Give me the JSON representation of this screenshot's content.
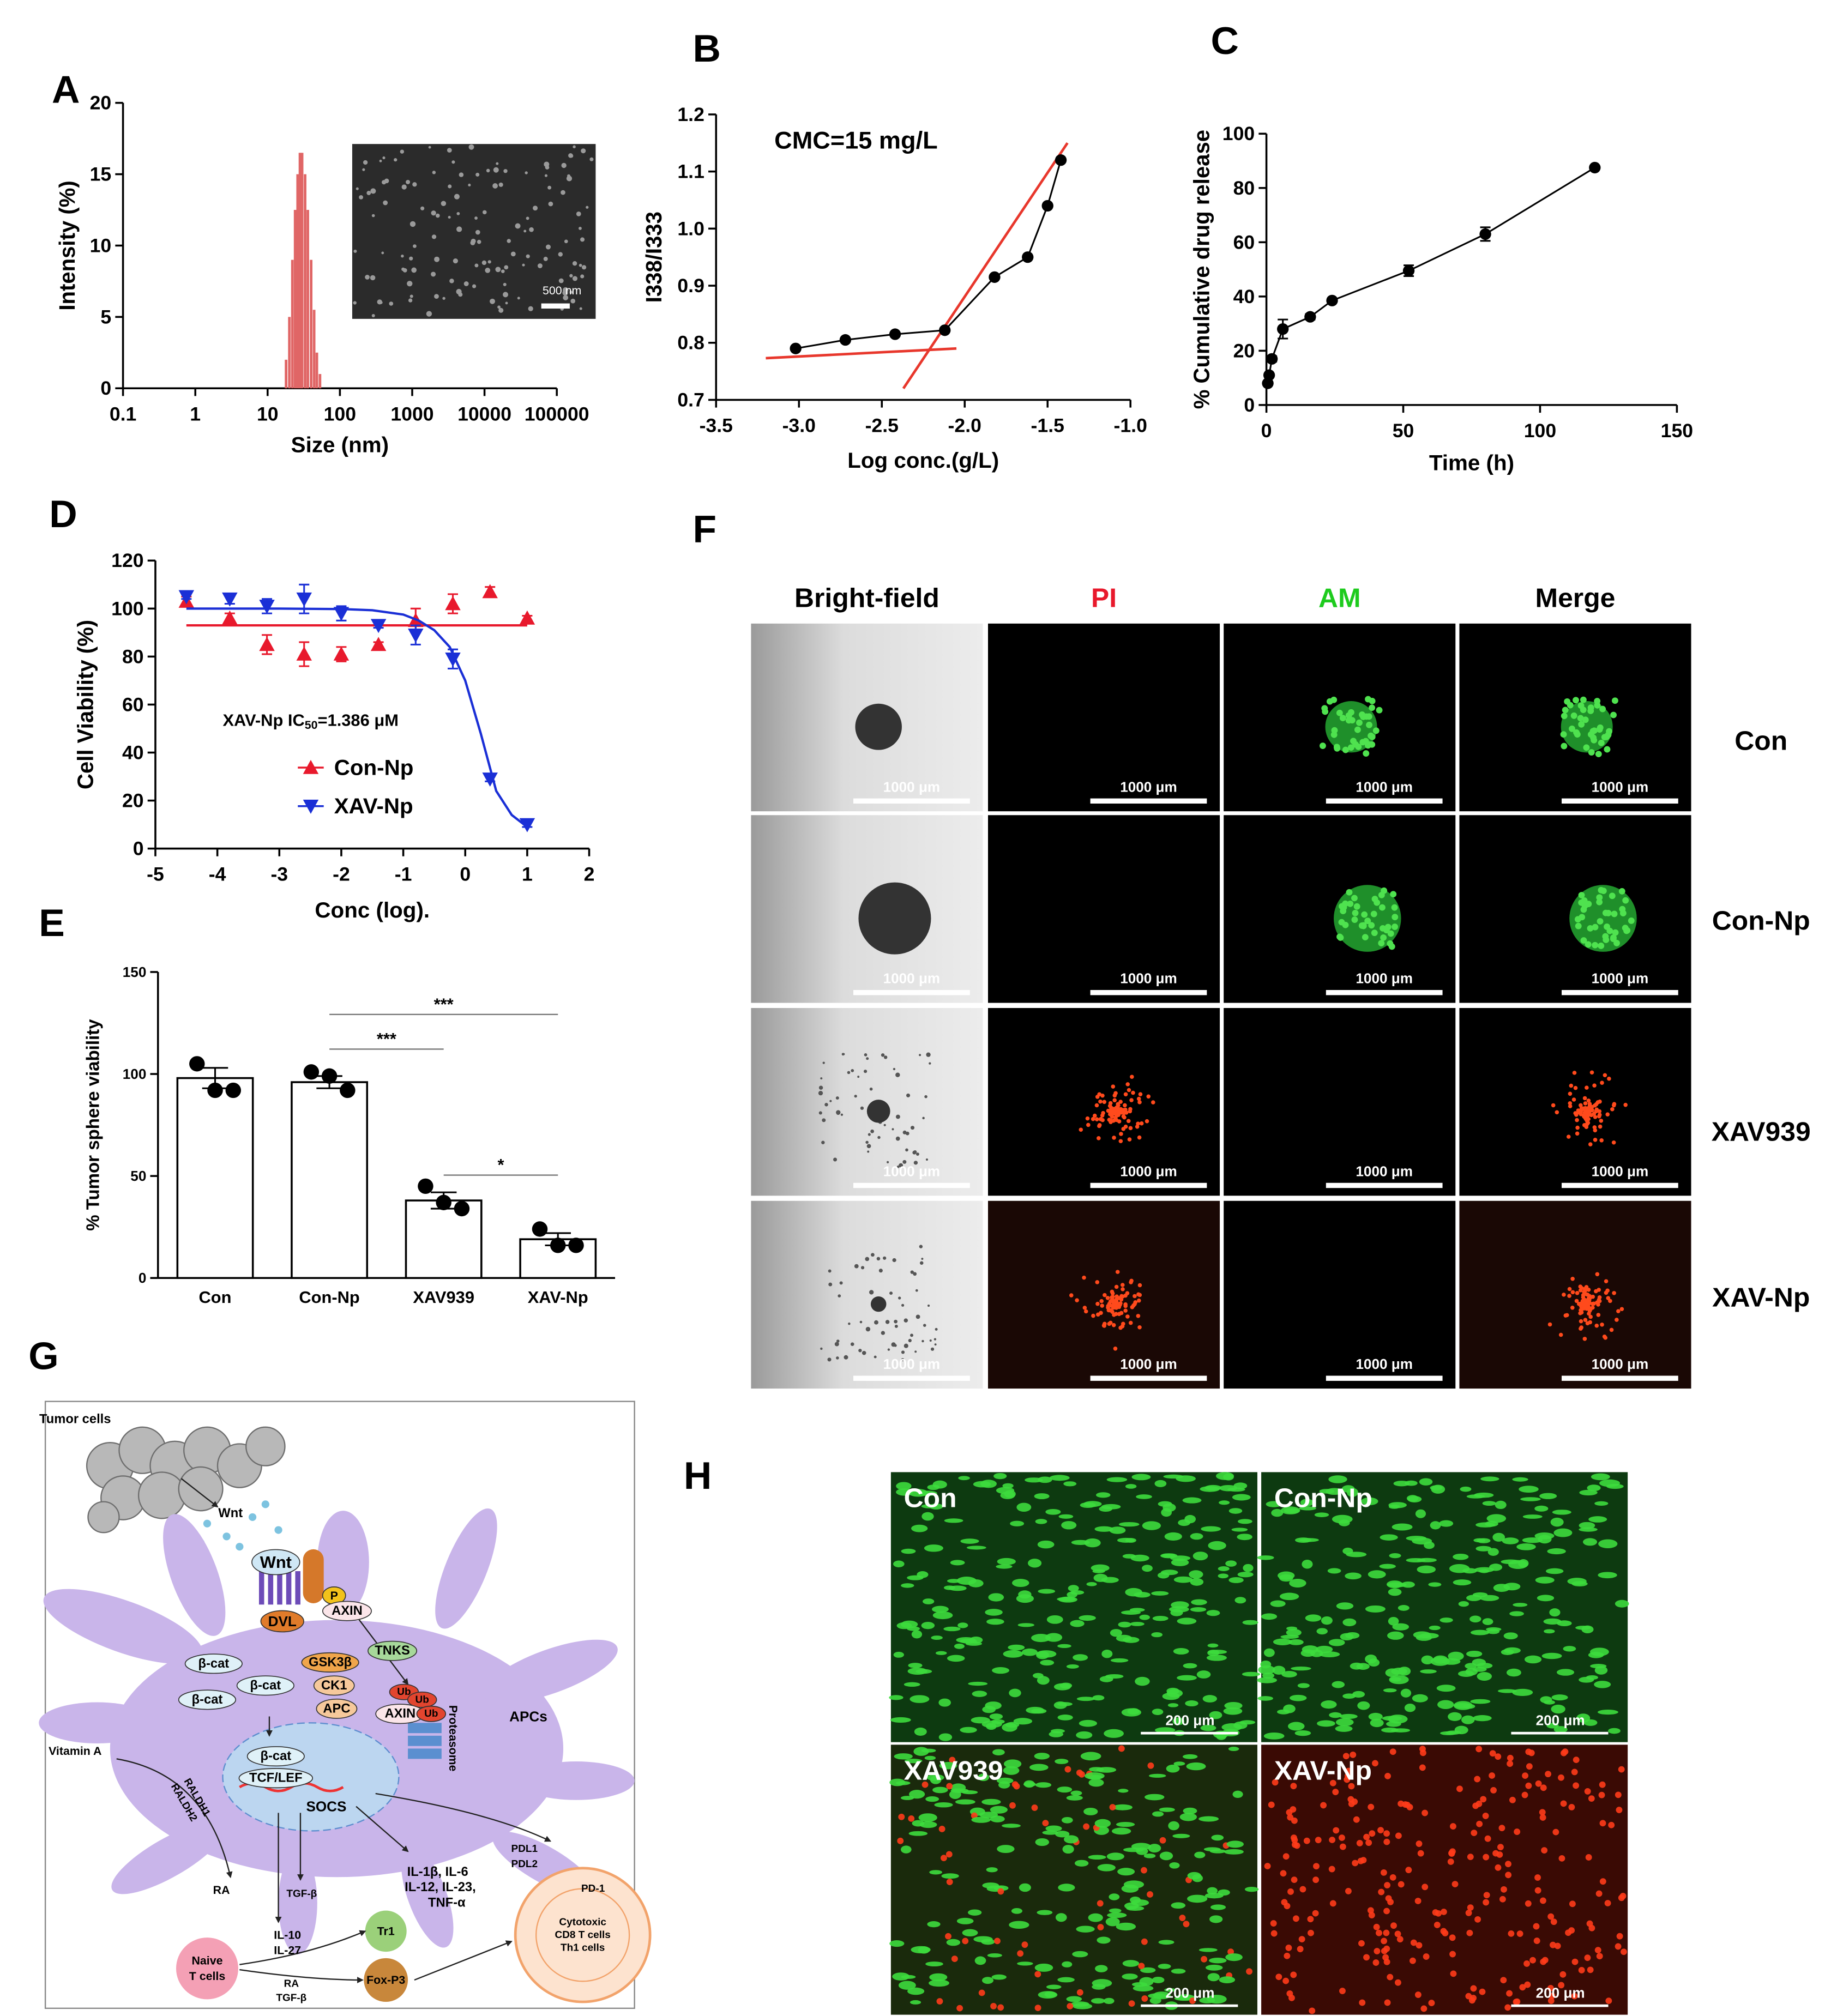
{
  "chart_data": [
    {
      "panel": "A",
      "type": "bar",
      "x": [
        18,
        20,
        22,
        24,
        26,
        28,
        30,
        33,
        36,
        40,
        44,
        48,
        53
      ],
      "values": [
        2,
        5,
        9,
        12.5,
        15,
        16.5,
        16.5,
        15,
        12.5,
        9,
        5.5,
        2.5,
        1
      ],
      "color": "#e06666",
      "xlog": true,
      "xlim": [
        0.1,
        100000
      ],
      "xticks": [
        0.1,
        1,
        10,
        100,
        1000,
        10000,
        100000
      ],
      "ylim": [
        0,
        20
      ],
      "yticks": [
        0,
        5,
        10,
        15,
        20
      ],
      "x_label": "Size (nm)",
      "y_label": "Intensity (%)",
      "inset_scale_label": "500 nm"
    },
    {
      "panel": "B",
      "type": "line",
      "annotation": "CMC=15 mg/L",
      "x": [
        -3.02,
        -2.72,
        -2.42,
        -2.12,
        -1.82,
        -1.62,
        -1.5,
        -1.42
      ],
      "values": [
        0.79,
        0.805,
        0.815,
        0.822,
        0.915,
        0.95,
        1.04,
        1.12
      ],
      "color": "#000000",
      "fit_lines": [
        {
          "x": [
            -3.2,
            -2.05
          ],
          "values": [
            0.773,
            0.79
          ]
        },
        {
          "x": [
            -2.37,
            -1.38
          ],
          "values": [
            0.72,
            1.15
          ]
        }
      ],
      "fit_color": "#e8372c",
      "xlim": [
        -3.5,
        -1
      ],
      "xticks": [
        -3.5,
        {
          "value": -3,
          "label": "-3.0"
        },
        -2.5,
        {
          "value": -2,
          "label": "-2.0"
        },
        -1.5,
        {
          "value": -1,
          "label": "-1.0"
        }
      ],
      "ylim": [
        0.7,
        1.2
      ],
      "yticks": [
        0.7,
        0.8,
        0.9,
        {
          "value": 1,
          "label": "1.0"
        },
        1.1,
        1.2
      ],
      "x_label": "Log conc.(g/L)",
      "y_label": "I338/I333"
    },
    {
      "panel": "C",
      "type": "line",
      "x": [
        0.5,
        1,
        2,
        6,
        16,
        24,
        52,
        80,
        120
      ],
      "values": [
        8,
        11,
        17,
        28,
        32.5,
        38.5,
        49.5,
        63,
        87.5
      ],
      "errors": [
        0.5,
        0.5,
        1,
        3.5,
        1,
        0.5,
        2,
        2.5,
        0.5
      ],
      "color": "#000000",
      "xlim": [
        0,
        150
      ],
      "xticks": [
        0,
        50,
        100,
        150
      ],
      "ylim": [
        0,
        100
      ],
      "yticks": [
        0,
        20,
        40,
        60,
        80,
        100
      ],
      "x_label": "Time (h)",
      "y_label": "% Cumulative drug release"
    },
    {
      "panel": "D",
      "type": "scatter",
      "x": [
        -4.5,
        -3.8,
        -3.2,
        -2.6,
        -2,
        -1.4,
        -0.8,
        -0.2,
        0.4,
        1
      ],
      "series": [
        {
          "name": "Con-Np",
          "color": "#e8192c",
          "marker": "triangle-up",
          "values": [
            103,
            96,
            85,
            81,
            81,
            85,
            95,
            102,
            107,
            96
          ],
          "errors": [
            2,
            2,
            4,
            5,
            3,
            1,
            5,
            4,
            2,
            1
          ],
          "fit_x": [
            -4.5,
            1
          ],
          "fit_values": [
            93,
            93
          ]
        },
        {
          "name": "XAV-Np",
          "color": "#1a2fd6",
          "marker": "triangle-down",
          "values": [
            105,
            104,
            101,
            104,
            98,
            93,
            89,
            79,
            29,
            10
          ],
          "errors": [
            1,
            2,
            3,
            6,
            3,
            1,
            4,
            4,
            1,
            1
          ],
          "fit_x": [
            -4.5,
            -3,
            -2,
            -1.5,
            -1,
            -0.75,
            -0.5,
            -0.25,
            0,
            0.25,
            0.5,
            0.75,
            1
          ],
          "fit_values": [
            100,
            100,
            99.8,
            99.3,
            97.5,
            95,
            91,
            84,
            70,
            48,
            24,
            14,
            9
          ]
        }
      ],
      "annotation": [
        "XAV-Np IC",
        "50",
        "=1.386 μM"
      ],
      "xlim": [
        -5,
        2
      ],
      "xticks": [
        -5,
        -4,
        -3,
        -2,
        -1,
        0,
        1,
        2
      ],
      "ylim": [
        0,
        120
      ],
      "yticks": [
        0,
        20,
        40,
        60,
        80,
        100,
        120
      ],
      "x_label": "Conc (log).",
      "y_label": "Cell Viability (%)"
    },
    {
      "panel": "E",
      "type": "bar",
      "categories": [
        "Con",
        "Con-Np",
        "XAV939",
        "XAV-Np"
      ],
      "values": [
        98,
        96,
        38,
        19
      ],
      "errors": [
        5,
        3,
        4,
        3
      ],
      "points": [
        [
          105,
          92,
          92
        ],
        [
          101,
          99,
          92
        ],
        [
          45,
          37,
          34
        ],
        [
          24,
          16,
          16
        ]
      ],
      "comparisons": [
        {
          "groups": [
            "Con-Np",
            "XAV939"
          ],
          "label": "***"
        },
        {
          "groups": [
            "Con-Np",
            "XAV-Np"
          ],
          "label": "***"
        },
        {
          "groups": [
            "XAV939",
            "XAV-Np"
          ],
          "label": "*"
        }
      ],
      "ylim": [
        0,
        150
      ],
      "yticks": [
        0,
        50,
        100,
        150
      ],
      "y_label": "% Tumor sphere viability"
    }
  ],
  "panel_f": {
    "panel": "F",
    "column_headers": [
      "Bright-field",
      "PI",
      "AM",
      "Merge"
    ],
    "row_labels": [
      "Con",
      "Con-Np",
      "XAV939",
      "XAV-Np"
    ],
    "scale_bar": "1000 μm"
  },
  "panel_g": {
    "panel": "G",
    "labels": [
      "Tumor cells",
      "Wnt",
      "Wnt",
      "DVL",
      "P",
      "AXIN",
      "TNKS",
      "β-cat",
      "β-cat",
      "β-cat",
      "GSK3β",
      "CK1",
      "APC",
      "Ub",
      "Ub",
      "AXIN",
      "Ub",
      "APCs",
      "Proteasome",
      "Vitamin A",
      "RALDH1",
      "RALDH2",
      "β-cat",
      "TCF/LEF",
      "SOCS",
      "RA",
      "TGF-β",
      "IL-10",
      "IL-27",
      "IL-1β, IL-6",
      "IL-12, IL-23,",
      "TNF-α",
      "PDL1",
      "PDL2",
      "PD-1",
      "Cytotoxic",
      "CD8 T cells",
      "Th1 cells",
      "Naive",
      "T cells",
      "Tr1",
      "Fox-P3",
      "RA",
      "TGF-β"
    ]
  },
  "panel_h": {
    "panel": "H",
    "labels": [
      "Con",
      "Con-Np",
      "XAV939",
      "XAV-Np"
    ],
    "scale_bar": "200 μm"
  }
}
